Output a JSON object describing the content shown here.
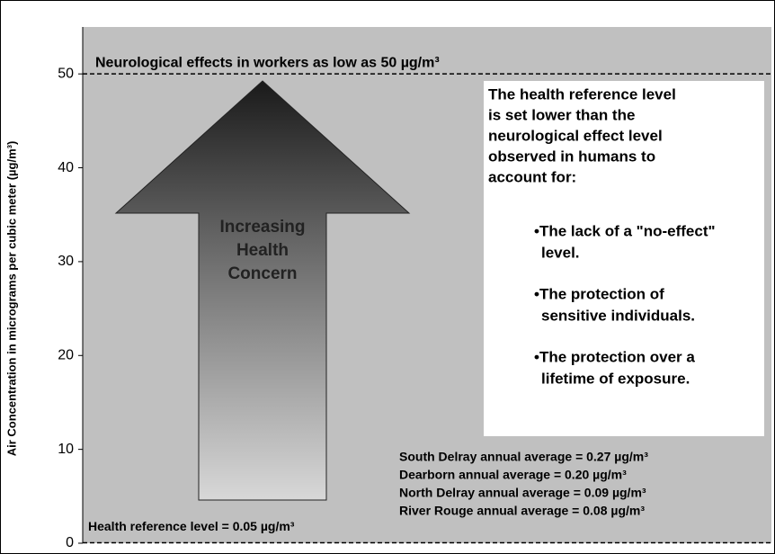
{
  "chart_data": {
    "type": "reference",
    "y_label": "Air Concentration in micrograms per cubic meter (µg/m³)",
    "ylim": [
      0,
      55
    ],
    "yticks": [
      0,
      10,
      20,
      30,
      40,
      50
    ],
    "reference_lines": [
      {
        "value": 50,
        "label": "Neurological effects in workers as low as 50 µg/m³"
      },
      {
        "value": 0.05,
        "label": "Health reference level = 0.05 µg/m³"
      }
    ],
    "arrow_label": [
      "Increasing",
      "Health",
      "Concern"
    ],
    "note": [
      "The health reference level",
      "is set lower than the",
      "neurological effect level",
      "observed in humans to",
      "account for:"
    ],
    "bullets": [
      [
        "•The lack of a \"no-effect\"",
        "level."
      ],
      [
        "•The protection of",
        "sensitive individuals."
      ],
      [
        "•The protection over a",
        "lifetime of exposure."
      ]
    ],
    "site_averages": [
      "South Delray annual average = 0.27 µg/m³",
      "Dearborn annual average = 0.20 µg/m³",
      "North Delray annual average = 0.09 µg/m³",
      "River Rouge annual average = 0.08 µg/m³"
    ]
  }
}
